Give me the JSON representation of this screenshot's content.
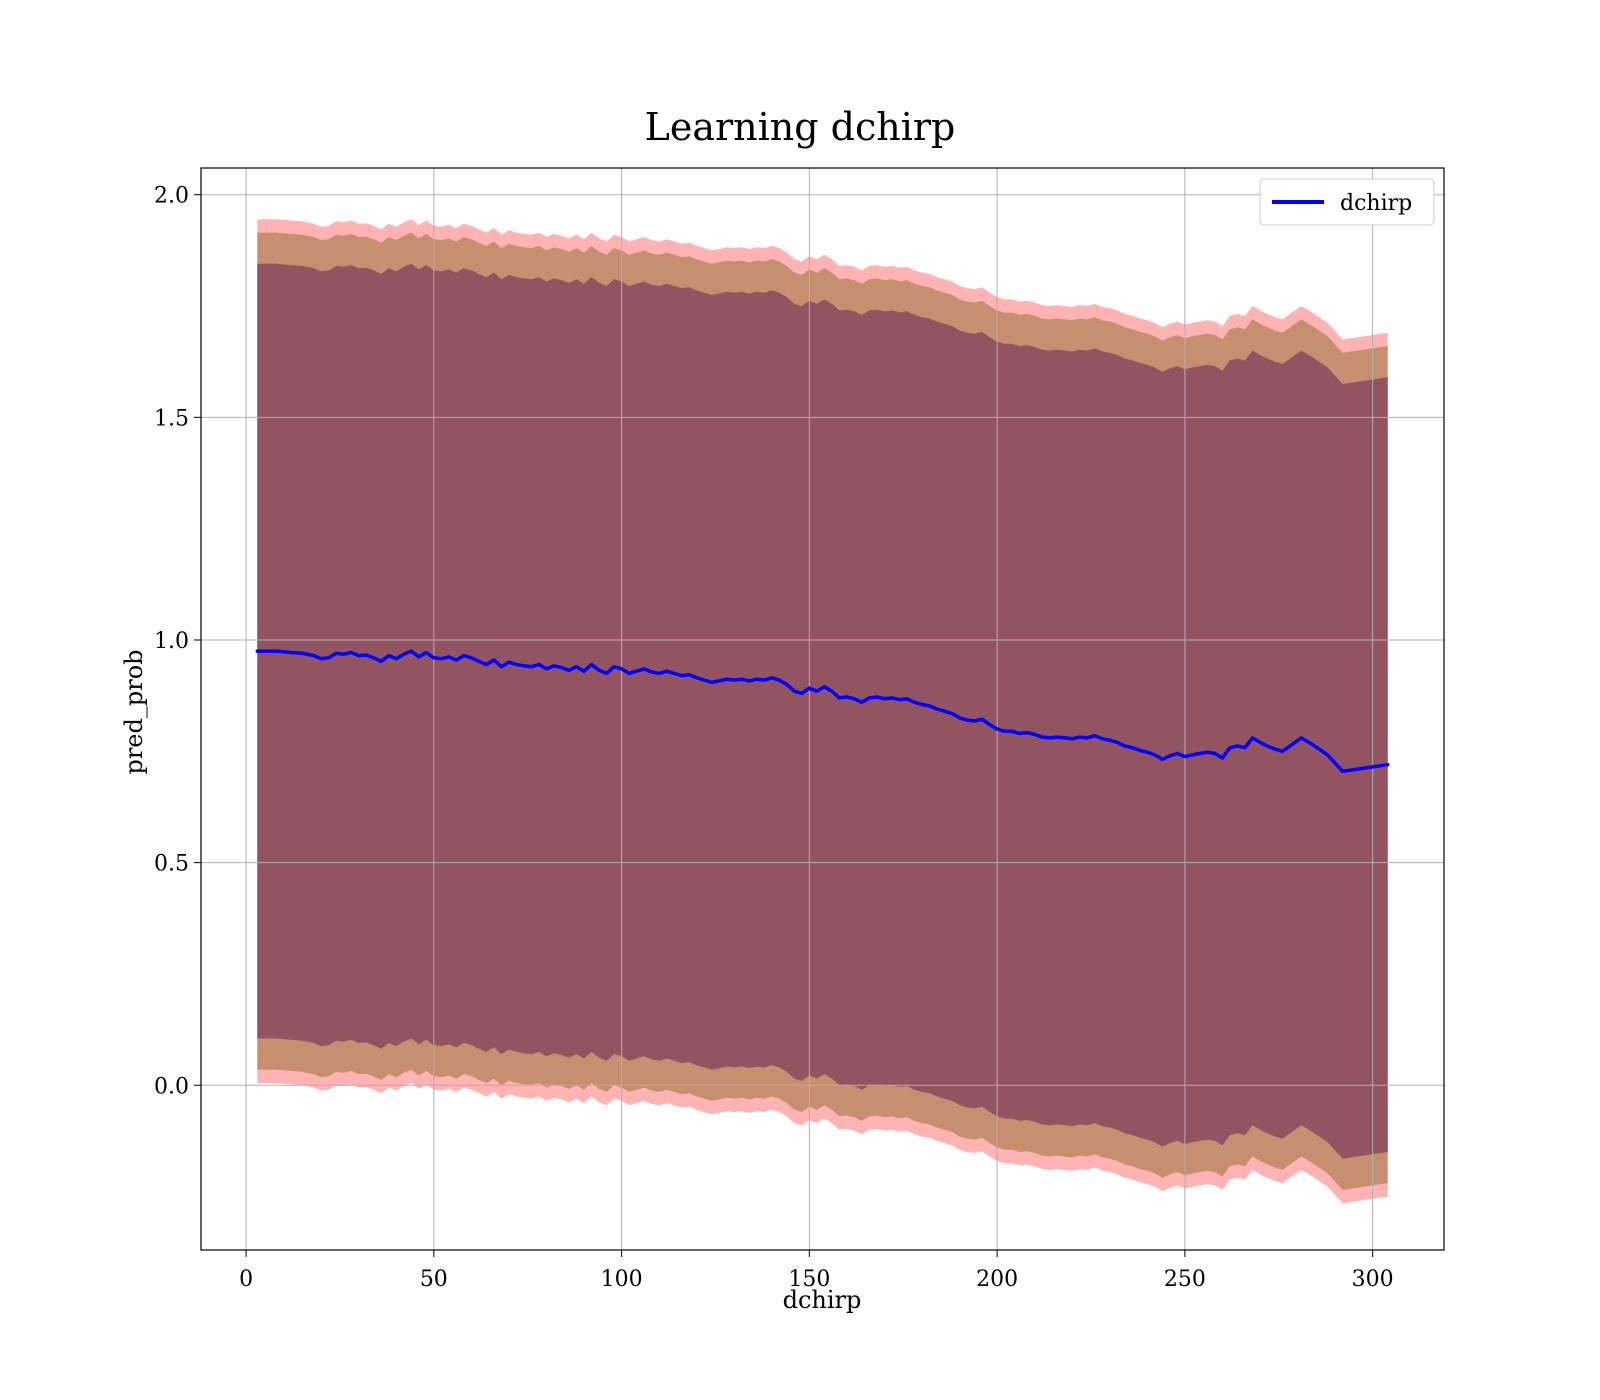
{
  "chart_data": {
    "type": "line",
    "title": "Learning dchirp",
    "xlabel": "dchirp",
    "ylabel": "pred_prob",
    "xlim": [
      -12,
      319
    ],
    "ylim": [
      -0.37,
      2.06
    ],
    "xticks": [
      0,
      50,
      100,
      150,
      200,
      250,
      300
    ],
    "yticks": [
      0.0,
      0.5,
      1.0,
      1.5,
      2.0
    ],
    "xtick_labels": [
      "0",
      "50",
      "100",
      "150",
      "200",
      "250",
      "300"
    ],
    "ytick_labels": [
      "0.0",
      "0.5",
      "1.0",
      "1.5",
      "2.0"
    ],
    "grid": true,
    "legend": {
      "position": "top-right",
      "entries": [
        "dchirp"
      ]
    },
    "colors": {
      "line": "#0000ff",
      "band_outer": "#ff9999",
      "band_middle": "#b8865e",
      "band_inner": "#8a4a5f",
      "grid": "#b0b0b0"
    },
    "bands": [
      {
        "level": "outer",
        "upper_offset": 0.97,
        "lower_offset": 0.97
      },
      {
        "level": "middle",
        "upper_offset": 0.94,
        "lower_offset": 0.94
      },
      {
        "level": "inner",
        "upper_offset": 0.87,
        "lower_offset": 0.87
      }
    ],
    "series": [
      {
        "name": "dchirp",
        "x": [
          3,
          8,
          12,
          15,
          18,
          20,
          22,
          24,
          26,
          28,
          30,
          32,
          34,
          36,
          38,
          40,
          42,
          44,
          46,
          48,
          50,
          52,
          54,
          56,
          58,
          60,
          62,
          64,
          66,
          68,
          70,
          72,
          74,
          76,
          78,
          80,
          82,
          84,
          86,
          88,
          90,
          92,
          94,
          96,
          98,
          100,
          102,
          104,
          106,
          108,
          110,
          112,
          114,
          116,
          118,
          120,
          122,
          124,
          126,
          128,
          130,
          132,
          134,
          136,
          138,
          140,
          142,
          144,
          146,
          148,
          150,
          152,
          154,
          156,
          158,
          160,
          162,
          164,
          166,
          168,
          170,
          172,
          174,
          176,
          178,
          180,
          182,
          184,
          186,
          188,
          190,
          192,
          194,
          196,
          198,
          200,
          202,
          204,
          206,
          208,
          210,
          212,
          214,
          216,
          218,
          220,
          222,
          224,
          226,
          228,
          230,
          232,
          234,
          236,
          238,
          240,
          242,
          244,
          246,
          248,
          250,
          252,
          254,
          256,
          258,
          260,
          262,
          264,
          266,
          268,
          270,
          272,
          274,
          276,
          278,
          281,
          284,
          288,
          292,
          296,
          300,
          304
        ],
        "values": [
          0.975,
          0.975,
          0.972,
          0.97,
          0.965,
          0.958,
          0.96,
          0.97,
          0.968,
          0.972,
          0.965,
          0.966,
          0.96,
          0.952,
          0.965,
          0.958,
          0.968,
          0.975,
          0.962,
          0.972,
          0.96,
          0.958,
          0.962,
          0.955,
          0.965,
          0.96,
          0.952,
          0.945,
          0.955,
          0.94,
          0.95,
          0.945,
          0.942,
          0.94,
          0.945,
          0.935,
          0.942,
          0.938,
          0.932,
          0.94,
          0.93,
          0.945,
          0.932,
          0.925,
          0.94,
          0.935,
          0.925,
          0.93,
          0.935,
          0.928,
          0.925,
          0.93,
          0.925,
          0.92,
          0.922,
          0.915,
          0.91,
          0.905,
          0.908,
          0.912,
          0.91,
          0.912,
          0.908,
          0.912,
          0.91,
          0.915,
          0.91,
          0.9,
          0.885,
          0.88,
          0.892,
          0.885,
          0.895,
          0.885,
          0.87,
          0.872,
          0.868,
          0.86,
          0.87,
          0.872,
          0.868,
          0.87,
          0.866,
          0.868,
          0.86,
          0.855,
          0.852,
          0.845,
          0.84,
          0.835,
          0.825,
          0.82,
          0.818,
          0.822,
          0.81,
          0.8,
          0.795,
          0.795,
          0.79,
          0.792,
          0.788,
          0.782,
          0.78,
          0.782,
          0.78,
          0.778,
          0.782,
          0.78,
          0.785,
          0.778,
          0.775,
          0.77,
          0.762,
          0.758,
          0.752,
          0.748,
          0.742,
          0.732,
          0.74,
          0.745,
          0.738,
          0.742,
          0.745,
          0.748,
          0.745,
          0.735,
          0.758,
          0.762,
          0.758,
          0.78,
          0.77,
          0.762,
          0.755,
          0.75,
          0.762,
          0.78,
          0.765,
          0.742,
          0.705,
          0.71,
          0.715,
          0.72
        ]
      }
    ]
  }
}
